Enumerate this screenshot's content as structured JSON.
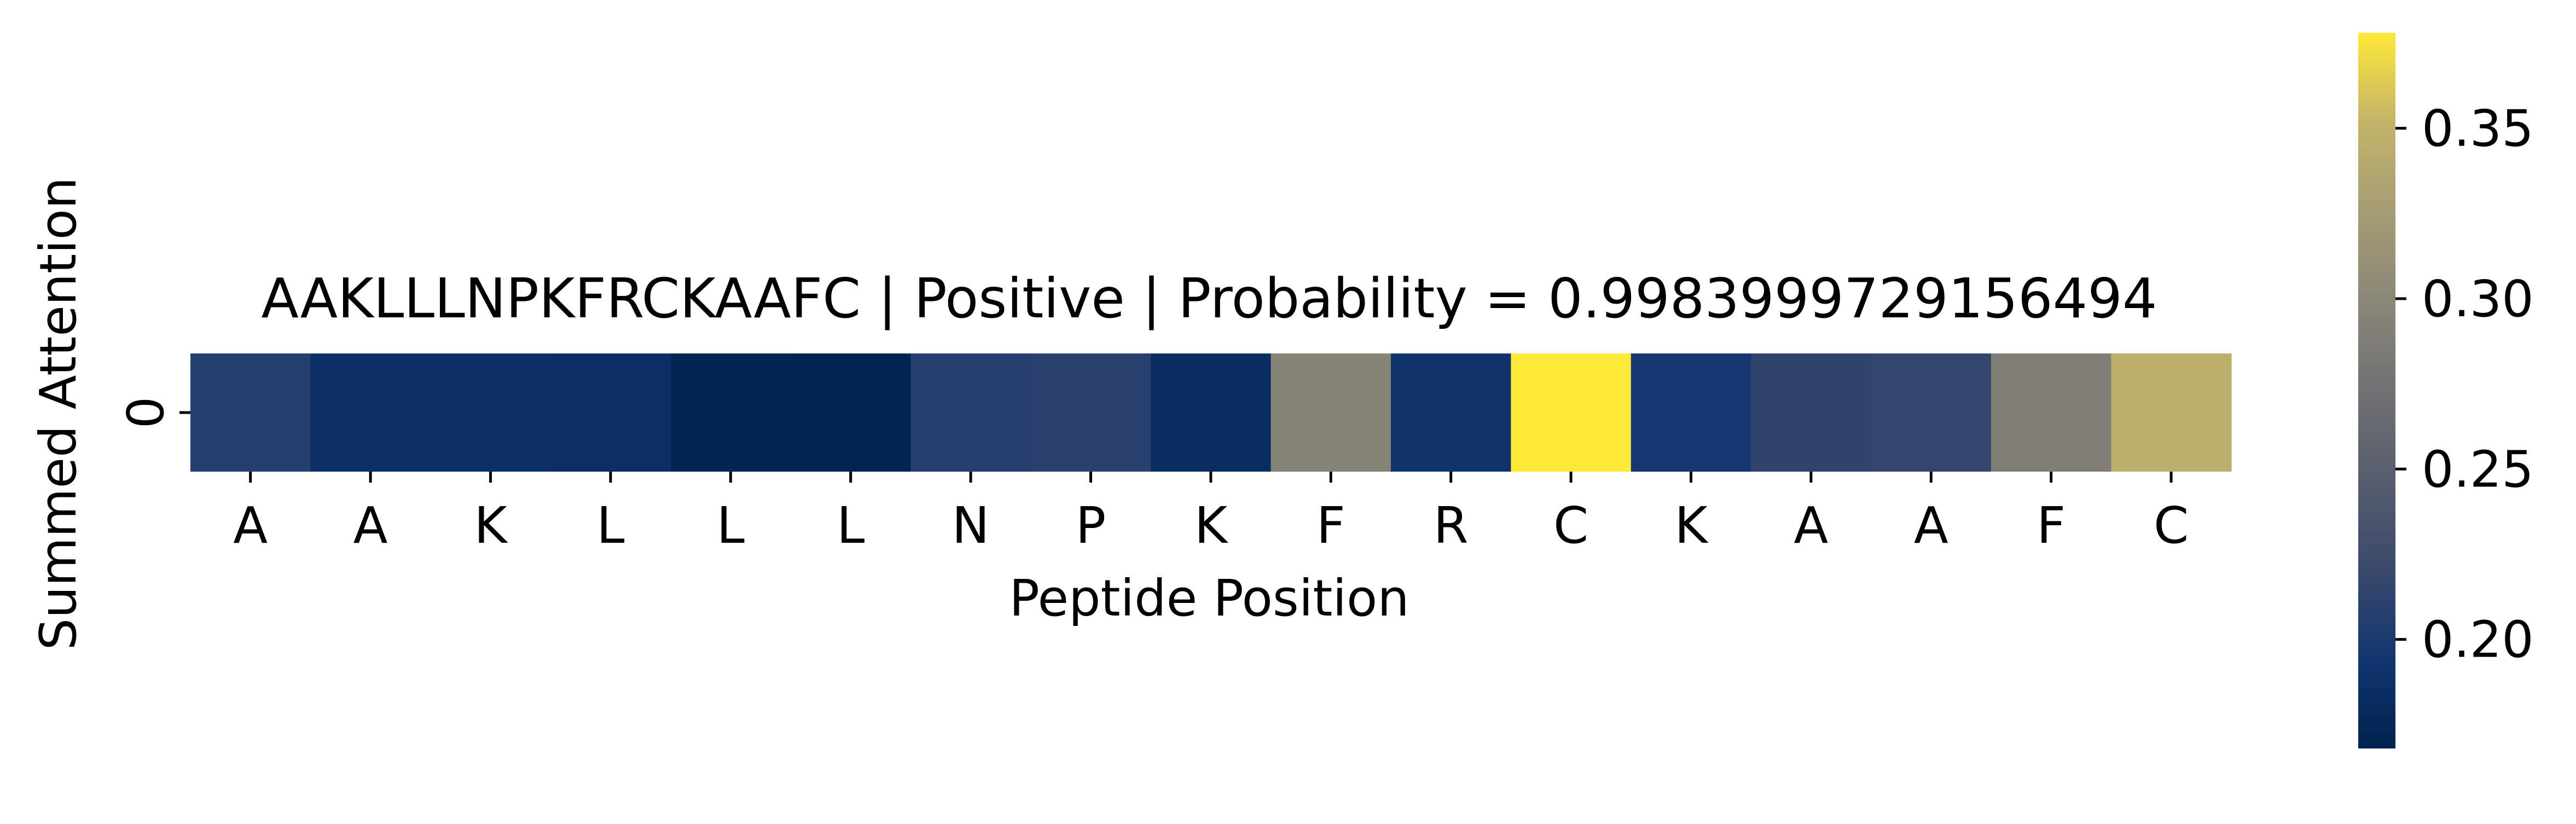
{
  "chart_data": {
    "type": "heatmap",
    "title": "AAKLLLNPKFRCKAAFC | Positive | Probability = 0.9983999729156494",
    "xlabel": "Peptide Position",
    "ylabel": "Summed Attention",
    "x": [
      "A",
      "A",
      "K",
      "L",
      "L",
      "L",
      "N",
      "P",
      "K",
      "F",
      "R",
      "C",
      "K",
      "A",
      "A",
      "F",
      "C"
    ],
    "y": [
      "0"
    ],
    "values": [
      [
        0.206,
        0.186,
        0.186,
        0.185,
        0.172,
        0.171,
        0.208,
        0.209,
        0.183,
        0.295,
        0.191,
        0.378,
        0.196,
        0.213,
        0.216,
        0.289,
        0.346
      ]
    ],
    "colormap": "cividis",
    "colorbar": {
      "range": [
        0.168,
        0.378
      ],
      "ticks": [
        0.2,
        0.25,
        0.3,
        0.35
      ],
      "tick_labels": [
        "0.20",
        "0.25",
        "0.30",
        "0.35"
      ]
    }
  }
}
